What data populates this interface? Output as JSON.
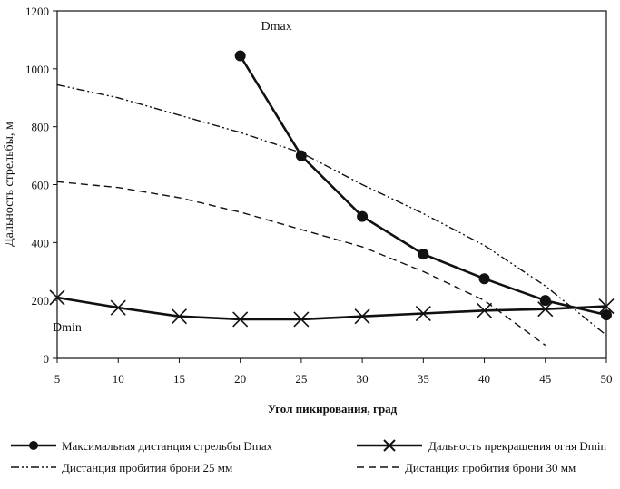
{
  "chart_data": {
    "type": "line",
    "xlabel": "Угол пикирования, град",
    "ylabel": "Дальность стрельбы, м",
    "xlim": [
      5,
      50
    ],
    "ylim": [
      0,
      1200
    ],
    "x_ticks": [
      "5",
      "10",
      "15",
      "20",
      "25",
      "30",
      "35",
      "40",
      "45",
      "50"
    ],
    "y_ticks": [
      "0",
      "200",
      "400",
      "600",
      "800",
      "1000",
      "1200"
    ],
    "annotations": [
      {
        "text": "Dmax",
        "x": 20,
        "y": 1150
      },
      {
        "text": "Dmin",
        "x": 5,
        "y": 110
      }
    ],
    "series": [
      {
        "name": "Максимальная дистанция стрельбы Dmax",
        "style": "solid-circle",
        "x": [
          20,
          25,
          30,
          35,
          40,
          45,
          50
        ],
        "y": [
          1045,
          700,
          490,
          360,
          275,
          200,
          150
        ]
      },
      {
        "name": "Дальность прекращения огня Dmin",
        "style": "solid-x",
        "x": [
          5,
          10,
          15,
          20,
          25,
          30,
          35,
          40,
          45,
          50
        ],
        "y": [
          210,
          175,
          145,
          135,
          135,
          145,
          155,
          165,
          170,
          180
        ]
      },
      {
        "name": "Дистанция пробития брони 25 мм",
        "style": "dashdotdot",
        "x": [
          5,
          10,
          15,
          20,
          25,
          30,
          35,
          40,
          45,
          50
        ],
        "y": [
          945,
          900,
          840,
          780,
          710,
          600,
          500,
          390,
          250,
          80
        ]
      },
      {
        "name": "Дистанция пробития брони 30 мм",
        "style": "dashed",
        "x": [
          5,
          10,
          15,
          20,
          25,
          30,
          35,
          40,
          45
        ],
        "y": [
          610,
          590,
          555,
          505,
          445,
          385,
          300,
          200,
          45
        ]
      }
    ]
  }
}
